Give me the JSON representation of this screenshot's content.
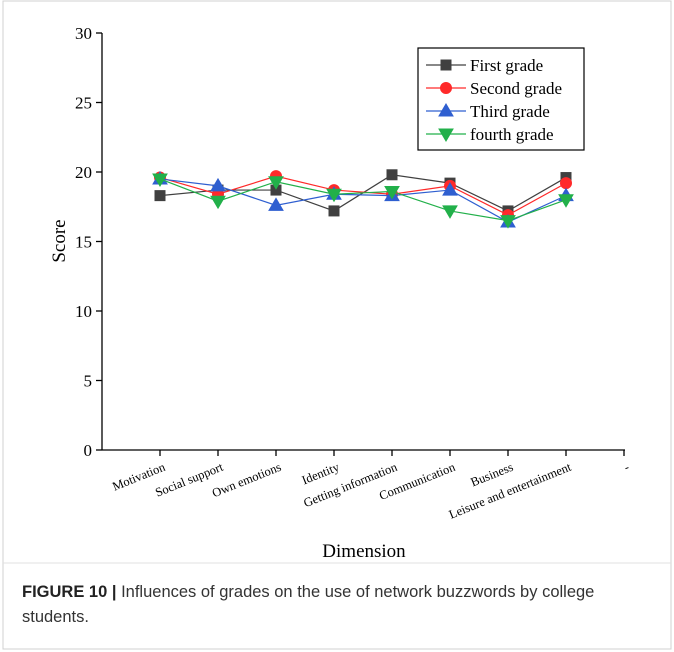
{
  "chart_data": {
    "type": "line",
    "y_label": "Score",
    "x_label": "Dimension",
    "categories": [
      "Motivation",
      "Social support",
      "Own emotions",
      "Identity",
      "Getting information",
      "Communication",
      "Business",
      "Leisure and entertainment",
      "-"
    ],
    "series": [
      {
        "name": "First grade",
        "color": "#404040",
        "marker": "square",
        "values": [
          18.3,
          18.7,
          18.7,
          17.2,
          19.8,
          19.2,
          17.2,
          19.6,
          null
        ]
      },
      {
        "name": "Second grade",
        "color": "#ff2a2a",
        "marker": "circle",
        "values": [
          19.6,
          18.4,
          19.7,
          18.7,
          18.4,
          19.0,
          16.9,
          19.2,
          null
        ]
      },
      {
        "name": "Third grade",
        "color": "#2f5fd0",
        "marker": "triangle-up",
        "values": [
          19.5,
          19.0,
          17.6,
          18.4,
          18.3,
          18.7,
          16.4,
          18.3,
          null
        ]
      },
      {
        "name": "fourth grade",
        "color": "#22b04a",
        "marker": "triangle-down",
        "values": [
          19.5,
          17.9,
          19.3,
          18.4,
          18.6,
          17.2,
          16.5,
          18.0,
          null
        ]
      }
    ],
    "ylim": [
      0,
      30
    ],
    "yticks": [
      0,
      5,
      10,
      15,
      20,
      25,
      30
    ],
    "legend": "upper right"
  },
  "caption": {
    "label": "FIGURE 10 |",
    "text": "Influences of grades on the use of network buzzwords by college students."
  }
}
